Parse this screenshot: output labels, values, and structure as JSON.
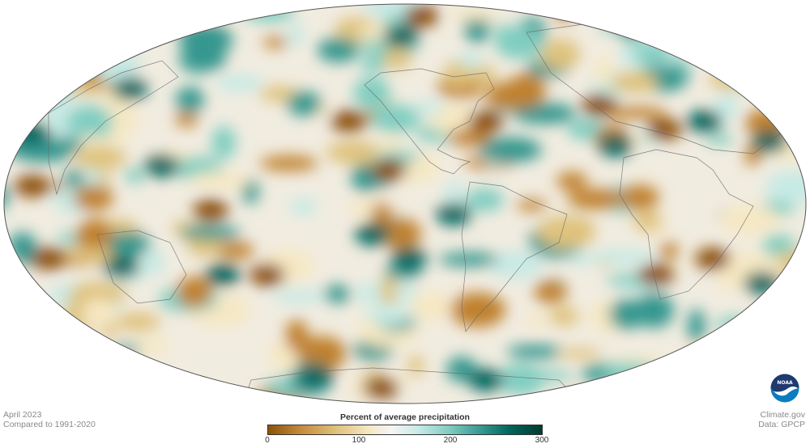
{
  "map": {
    "projection": "Mollweide",
    "variable": "Percent of average precipitation",
    "colors": {
      "dry": "#8c510a",
      "normal": "#f5f5f5",
      "wet": "#003c30"
    }
  },
  "footer_left": {
    "date": "April 2023",
    "baseline": "Compared to 1991-2020"
  },
  "footer_right": {
    "source": "Climate.gov",
    "data": "Data: GPCP"
  },
  "logo": {
    "text": "NOAA"
  },
  "colorbar": {
    "title": "Percent of average precipitation",
    "ticks": [
      "0",
      "100",
      "200",
      "300"
    ],
    "min": 0,
    "max": 300
  }
}
